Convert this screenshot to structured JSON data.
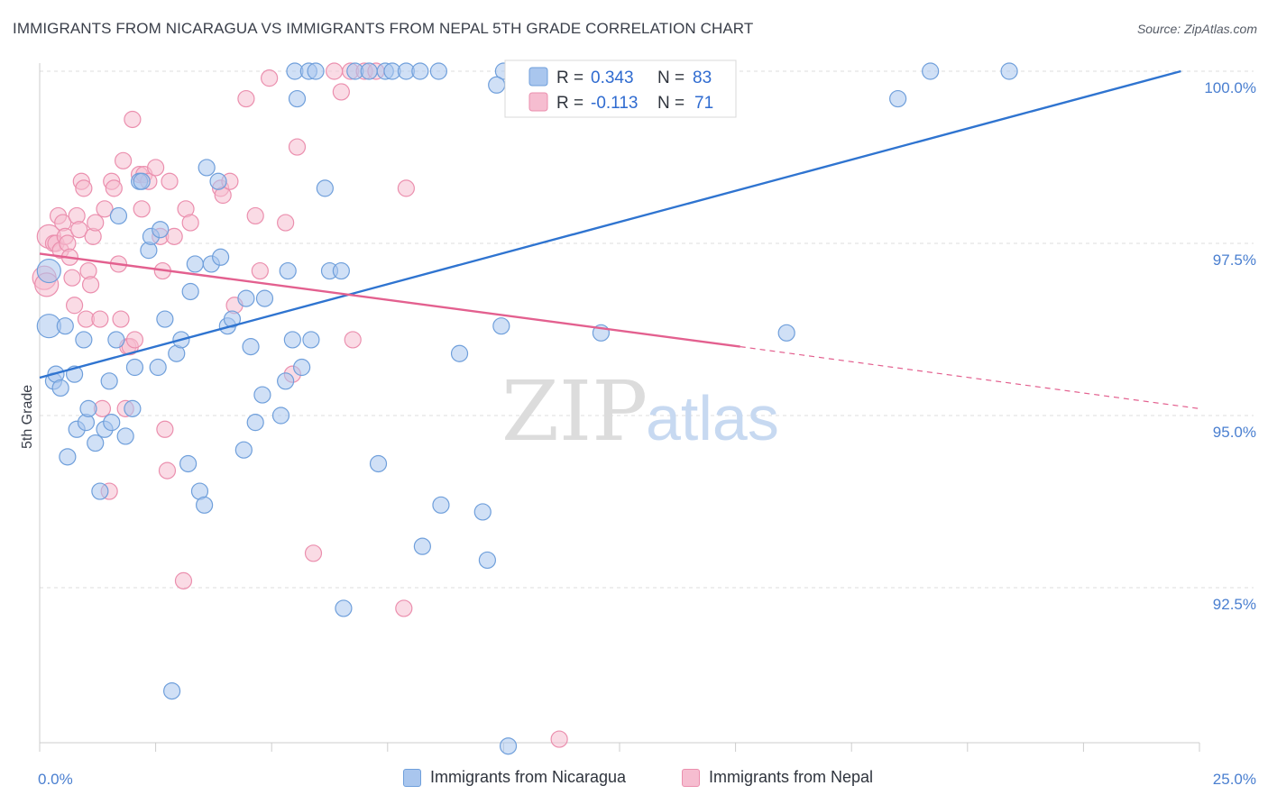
{
  "title": "IMMIGRANTS FROM NICARAGUA VS IMMIGRANTS FROM NEPAL 5TH GRADE CORRELATION CHART",
  "source": "Source: ZipAtlas.com",
  "watermark": {
    "zip": "ZIP",
    "atlas": "atlas"
  },
  "colors": {
    "nicaragua_fill": "#a9c6ee",
    "nicaragua_stroke": "#6f9fdb",
    "nicaragua_line": "#2f74d0",
    "nepal_fill": "#f6bdd0",
    "nepal_stroke": "#eb8fae",
    "nepal_line": "#e3608f",
    "value_text": "#2f6bd0"
  },
  "legend": {
    "r_label": "R = ",
    "n_label": "N = ",
    "series": [
      {
        "r": "0.343",
        "n": "83"
      },
      {
        "r": "-0.113",
        "n": "71"
      }
    ]
  },
  "chart_data": {
    "type": "scatter",
    "title": "IMMIGRANTS FROM NICARAGUA VS IMMIGRANTS FROM NEPAL 5TH GRADE CORRELATION CHART",
    "xlabel": "",
    "ylabel": "5th Grade",
    "xlim": [
      0,
      25
    ],
    "ylim": [
      90.5,
      100.2
    ],
    "x_ticks": [
      "0.0%",
      "25.0%"
    ],
    "y_ticks": [
      {
        "value": 100.0,
        "label": "100.0%"
      },
      {
        "value": 97.5,
        "label": "97.5%"
      },
      {
        "value": 95.0,
        "label": "95.0%"
      },
      {
        "value": 92.5,
        "label": "92.5%"
      }
    ],
    "grid": true,
    "legend_position": "bottom",
    "series": [
      {
        "name": "Immigrants from Nicaragua",
        "r": 0.343,
        "n": 83,
        "trend": {
          "x": [
            0,
            24.6
          ],
          "y": [
            95.55,
            100.0
          ]
        },
        "points": [
          [
            0.2,
            97.1
          ],
          [
            0.2,
            96.3
          ],
          [
            0.3,
            95.5
          ],
          [
            0.35,
            95.6
          ],
          [
            0.45,
            95.4
          ],
          [
            0.55,
            96.3
          ],
          [
            0.6,
            94.4
          ],
          [
            0.75,
            95.6
          ],
          [
            0.8,
            94.8
          ],
          [
            0.95,
            96.1
          ],
          [
            1.0,
            94.9
          ],
          [
            1.05,
            95.1
          ],
          [
            1.2,
            94.6
          ],
          [
            1.3,
            93.9
          ],
          [
            1.4,
            94.8
          ],
          [
            1.5,
            95.5
          ],
          [
            1.55,
            94.9
          ],
          [
            1.65,
            96.1
          ],
          [
            1.7,
            97.9
          ],
          [
            1.85,
            94.7
          ],
          [
            2.0,
            95.1
          ],
          [
            2.05,
            95.7
          ],
          [
            2.15,
            98.4
          ],
          [
            2.2,
            98.4
          ],
          [
            2.35,
            97.4
          ],
          [
            2.4,
            97.6
          ],
          [
            2.55,
            95.7
          ],
          [
            2.6,
            97.7
          ],
          [
            2.7,
            96.4
          ],
          [
            2.85,
            91.0
          ],
          [
            2.95,
            95.9
          ],
          [
            3.05,
            96.1
          ],
          [
            3.2,
            94.3
          ],
          [
            3.25,
            96.8
          ],
          [
            3.35,
            97.2
          ],
          [
            3.45,
            93.9
          ],
          [
            3.55,
            93.7
          ],
          [
            3.6,
            98.6
          ],
          [
            3.7,
            97.2
          ],
          [
            3.85,
            98.4
          ],
          [
            3.9,
            97.3
          ],
          [
            4.05,
            96.3
          ],
          [
            4.15,
            96.4
          ],
          [
            4.4,
            94.5
          ],
          [
            4.45,
            96.7
          ],
          [
            4.55,
            96.0
          ],
          [
            4.65,
            94.9
          ],
          [
            4.8,
            95.3
          ],
          [
            4.85,
            96.7
          ],
          [
            5.2,
            95.0
          ],
          [
            5.3,
            95.5
          ],
          [
            5.35,
            97.1
          ],
          [
            5.45,
            96.1
          ],
          [
            5.5,
            100.0
          ],
          [
            5.55,
            99.6
          ],
          [
            5.65,
            95.7
          ],
          [
            5.8,
            100.0
          ],
          [
            5.85,
            96.1
          ],
          [
            5.95,
            100.0
          ],
          [
            6.15,
            98.3
          ],
          [
            6.25,
            97.1
          ],
          [
            6.5,
            97.1
          ],
          [
            6.55,
            92.2
          ],
          [
            6.8,
            100.0
          ],
          [
            7.1,
            100.0
          ],
          [
            7.3,
            94.3
          ],
          [
            7.45,
            100.0
          ],
          [
            7.6,
            100.0
          ],
          [
            7.9,
            100.0
          ],
          [
            8.2,
            100.0
          ],
          [
            8.25,
            93.1
          ],
          [
            8.6,
            100.0
          ],
          [
            8.65,
            93.7
          ],
          [
            9.05,
            95.9
          ],
          [
            9.55,
            93.6
          ],
          [
            9.65,
            92.9
          ],
          [
            9.95,
            96.3
          ],
          [
            10.1,
            90.2
          ],
          [
            10.0,
            100.0
          ],
          [
            9.85,
            99.8
          ],
          [
            12.1,
            96.2
          ],
          [
            16.1,
            96.2
          ],
          [
            18.5,
            99.6
          ],
          [
            19.2,
            100.0
          ],
          [
            20.9,
            100.0
          ]
        ]
      },
      {
        "name": "Immigrants from Nepal",
        "r": -0.113,
        "n": 71,
        "trend": {
          "x": [
            0,
            15.1
          ],
          "y": [
            97.35,
            96.0
          ]
        },
        "trend_dashed": {
          "x": [
            15.1,
            25.0
          ],
          "y": [
            96.0,
            95.1
          ]
        },
        "points": [
          [
            0.1,
            97.0
          ],
          [
            0.15,
            96.9
          ],
          [
            0.2,
            97.6
          ],
          [
            0.3,
            97.5
          ],
          [
            0.35,
            97.5
          ],
          [
            0.4,
            97.9
          ],
          [
            0.45,
            97.4
          ],
          [
            0.5,
            97.8
          ],
          [
            0.55,
            97.6
          ],
          [
            0.6,
            97.5
          ],
          [
            0.65,
            97.3
          ],
          [
            0.7,
            97.0
          ],
          [
            0.75,
            96.6
          ],
          [
            0.8,
            97.9
          ],
          [
            0.85,
            97.7
          ],
          [
            0.9,
            98.4
          ],
          [
            0.95,
            98.3
          ],
          [
            1.0,
            96.4
          ],
          [
            1.05,
            97.1
          ],
          [
            1.1,
            96.9
          ],
          [
            1.15,
            97.6
          ],
          [
            1.2,
            97.8
          ],
          [
            1.3,
            96.4
          ],
          [
            1.35,
            95.1
          ],
          [
            1.4,
            98.0
          ],
          [
            1.5,
            93.9
          ],
          [
            1.55,
            98.4
          ],
          [
            1.6,
            98.3
          ],
          [
            1.7,
            97.2
          ],
          [
            1.75,
            96.4
          ],
          [
            1.8,
            98.7
          ],
          [
            1.85,
            95.1
          ],
          [
            1.9,
            96.0
          ],
          [
            1.95,
            96.0
          ],
          [
            2.0,
            99.3
          ],
          [
            2.05,
            96.1
          ],
          [
            2.15,
            98.5
          ],
          [
            2.2,
            98.0
          ],
          [
            2.25,
            98.5
          ],
          [
            2.35,
            98.4
          ],
          [
            2.5,
            98.6
          ],
          [
            2.6,
            97.6
          ],
          [
            2.65,
            97.1
          ],
          [
            2.7,
            94.8
          ],
          [
            2.75,
            94.2
          ],
          [
            2.8,
            98.4
          ],
          [
            2.9,
            97.6
          ],
          [
            3.1,
            92.6
          ],
          [
            3.15,
            98.0
          ],
          [
            3.25,
            97.8
          ],
          [
            3.9,
            98.3
          ],
          [
            3.95,
            98.2
          ],
          [
            4.1,
            98.4
          ],
          [
            4.2,
            96.6
          ],
          [
            4.45,
            99.6
          ],
          [
            4.65,
            97.9
          ],
          [
            4.75,
            97.1
          ],
          [
            4.95,
            99.9
          ],
          [
            5.3,
            97.8
          ],
          [
            5.45,
            95.6
          ],
          [
            5.55,
            98.9
          ],
          [
            5.9,
            93.0
          ],
          [
            6.35,
            100.0
          ],
          [
            6.5,
            99.7
          ],
          [
            6.7,
            100.0
          ],
          [
            6.75,
            96.1
          ],
          [
            7.0,
            100.0
          ],
          [
            7.25,
            100.0
          ],
          [
            7.85,
            92.2
          ],
          [
            7.9,
            98.3
          ],
          [
            11.2,
            90.3
          ]
        ]
      }
    ]
  }
}
